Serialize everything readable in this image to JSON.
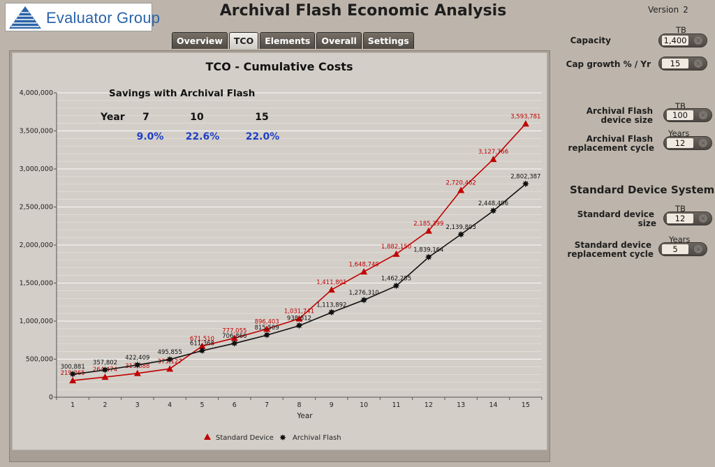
{
  "header": {
    "logo_text": "Evaluator Group",
    "title": "Archival Flash Economic Analysis",
    "version_label": "Version",
    "version_number": "2"
  },
  "tabs": [
    "Overview",
    "TCO",
    "Elements",
    "Overall",
    "Settings"
  ],
  "active_tab": "TCO",
  "settings": {
    "capacity": {
      "label": "Capacity",
      "unit": "TB",
      "value": "1,400"
    },
    "cap_growth": {
      "label": "Cap growth % / Yr",
      "value": "15"
    },
    "af_device_size": {
      "label_1": "Archival Flash",
      "label_2": "device size",
      "unit": "TB",
      "value": "100"
    },
    "af_replacement": {
      "label_1": "Archival Flash",
      "label_2": "replacement cycle",
      "unit": "Years",
      "value": "12"
    },
    "section_title": "Standard Device System",
    "std_device_size": {
      "label_1": "Standard device",
      "label_2": "size",
      "unit": "TB",
      "value": "12"
    },
    "std_replacement": {
      "label_1": "Standard device",
      "label_2": "replacement cycle",
      "unit": "Years",
      "value": "5"
    }
  },
  "savings": {
    "title": "Savings with Archival Flash",
    "year_label": "Year",
    "years": [
      "7",
      "10",
      "15"
    ],
    "percents": [
      "9.0%",
      "22.6%",
      "22.0%"
    ],
    "percent_color": "#1f3fc4"
  },
  "chart_data": {
    "type": "line",
    "title": "TCO - Cumulative Costs",
    "xlabel": "Year",
    "ylabel": "",
    "categories": [
      "1",
      "2",
      "3",
      "4",
      "5",
      "6",
      "7",
      "8",
      "9",
      "10",
      "11",
      "12",
      "13",
      "14",
      "15"
    ],
    "ylim": [
      0,
      4000000
    ],
    "yticks": [
      0,
      500000,
      1000000,
      1500000,
      2000000,
      2500000,
      3000000,
      3500000,
      4000000
    ],
    "ytick_labels": [
      "0",
      "500,000",
      "1,000,000",
      "1,500,000",
      "2,000,000",
      "2,500,000",
      "3,000,000",
      "3,500,000",
      "4,000,000"
    ],
    "grid": true,
    "legend_position": "bottom",
    "series": [
      {
        "name": "Standard Device",
        "color": "#c00000",
        "marker": "triangle",
        "values": [
          219265,
          264474,
          313688,
          373127,
          671510,
          777055,
          896403,
          1031741,
          1411801,
          1648749,
          1882150,
          2185399,
          2720462,
          3127766,
          3593781
        ],
        "labels": [
          "219,265",
          "264,474",
          "313,688",
          "373,127",
          "671,510",
          "777,055",
          "896,403",
          "1,031,741",
          "1,411,801",
          "1,648,749",
          "1,882,150",
          "2,185,399",
          "2,720,462",
          "3,127,766",
          "3,593,781"
        ]
      },
      {
        "name": "Archival Flash",
        "color": "#111111",
        "marker": "star",
        "values": [
          300881,
          357802,
          422409,
          495855,
          611368,
          706866,
          815509,
          938812,
          1113892,
          1276310,
          1462255,
          1839164,
          2139803,
          2448496,
          2802387
        ],
        "labels": [
          "300,881",
          "357,802",
          "422,409",
          "495,855",
          "611,368",
          "706,866",
          "815,509",
          "938,812",
          "1,113,892",
          "1,276,310",
          "1,462,255",
          "1,839,164",
          "2,139,803",
          "2,448,496",
          "2,802,387"
        ]
      }
    ]
  }
}
